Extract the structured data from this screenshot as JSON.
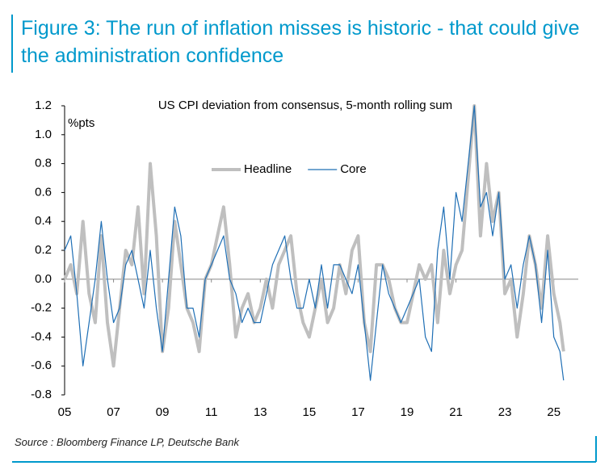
{
  "header": {
    "title": "Figure 3: The run of inflation misses is historic - that could give the administration confidence"
  },
  "chart_data": {
    "type": "line",
    "title": "US CPI deviation from consensus, 5-month rolling sum",
    "y_label": "%pts",
    "xlim": [
      2005,
      2026
    ],
    "xticks": [
      {
        "value": 2005,
        "label": "05"
      },
      {
        "value": 2007,
        "label": "07"
      },
      {
        "value": 2009,
        "label": "09"
      },
      {
        "value": 2011,
        "label": "11"
      },
      {
        "value": 2013,
        "label": "13"
      },
      {
        "value": 2015,
        "label": "15"
      },
      {
        "value": 2017,
        "label": "17"
      },
      {
        "value": 2019,
        "label": "19"
      },
      {
        "value": 2021,
        "label": "21"
      },
      {
        "value": 2023,
        "label": "23"
      },
      {
        "value": 2025,
        "label": "25"
      }
    ],
    "ylim": [
      -0.8,
      1.2
    ],
    "yticks": [
      1.2,
      {
        "value": 1.0,
        "label": "1.0"
      },
      0.8,
      0.6,
      0.4,
      0.2,
      {
        "value": 0.0,
        "label": "0.0"
      },
      -0.2,
      -0.4,
      -0.6,
      -0.8
    ],
    "legend": "top",
    "x": [
      2005,
      2005.25,
      2005.5,
      2005.75,
      2006,
      2006.25,
      2006.5,
      2006.75,
      2007,
      2007.25,
      2007.5,
      2007.75,
      2008,
      2008.25,
      2008.5,
      2008.75,
      2009,
      2009.25,
      2009.5,
      2009.75,
      2010,
      2010.25,
      2010.5,
      2010.75,
      2011,
      2011.25,
      2011.5,
      2011.75,
      2012,
      2012.25,
      2012.5,
      2012.75,
      2013,
      2013.25,
      2013.5,
      2013.75,
      2014,
      2014.25,
      2014.5,
      2014.75,
      2015,
      2015.25,
      2015.5,
      2015.75,
      2016,
      2016.25,
      2016.5,
      2016.75,
      2017,
      2017.25,
      2017.5,
      2017.75,
      2018,
      2018.25,
      2018.5,
      2018.75,
      2019,
      2019.25,
      2019.5,
      2019.75,
      2020,
      2020.25,
      2020.5,
      2020.75,
      2021,
      2021.25,
      2021.5,
      2021.75,
      2022,
      2022.25,
      2022.5,
      2022.75,
      2023,
      2023.25,
      2023.5,
      2023.75,
      2024,
      2024.25,
      2024.5,
      2024.75,
      2025,
      2025.25,
      2025.4
    ],
    "series": [
      {
        "name": "Headline",
        "color": "#bfbfbf",
        "values": [
          0,
          0.1,
          -0.1,
          0.4,
          -0.1,
          -0.3,
          0.3,
          -0.3,
          -0.6,
          -0.2,
          0.2,
          0.1,
          0.5,
          -0.1,
          0.8,
          0.3,
          -0.5,
          -0.2,
          0.4,
          0.1,
          -0.2,
          -0.3,
          -0.5,
          0,
          0.1,
          0.3,
          0.5,
          0.1,
          -0.4,
          -0.2,
          -0.1,
          -0.3,
          -0.2,
          0,
          -0.2,
          0.1,
          0.2,
          0.3,
          -0.1,
          -0.3,
          -0.4,
          -0.2,
          0,
          -0.3,
          -0.2,
          0.1,
          -0.1,
          0.2,
          0.3,
          -0.3,
          -0.5,
          0.1,
          0.1,
          0,
          -0.2,
          -0.3,
          -0.3,
          -0.1,
          0.1,
          0,
          0.1,
          -0.3,
          0.2,
          -0.1,
          0.1,
          0.2,
          0.7,
          1.2,
          0.3,
          0.8,
          0.4,
          0.6,
          -0.1,
          0,
          -0.4,
          -0.1,
          0.3,
          0.1,
          -0.2,
          0.3,
          -0.1,
          -0.3,
          -0.5
        ]
      },
      {
        "name": "Core",
        "color": "#1f6fb5",
        "values": [
          0.2,
          0.3,
          -0.1,
          -0.6,
          -0.3,
          0,
          0.4,
          0,
          -0.3,
          -0.2,
          0.1,
          0.2,
          0,
          -0.2,
          0.2,
          -0.2,
          -0.5,
          0,
          0.5,
          0.3,
          -0.2,
          -0.2,
          -0.4,
          0,
          0.1,
          0.2,
          0.3,
          0,
          -0.1,
          -0.3,
          -0.2,
          -0.3,
          -0.3,
          -0.1,
          0.1,
          0.2,
          0.3,
          0,
          -0.2,
          -0.2,
          0,
          -0.2,
          0.1,
          -0.2,
          0.1,
          0.1,
          0,
          -0.1,
          0.1,
          -0.3,
          -0.7,
          -0.3,
          0.1,
          -0.1,
          -0.2,
          -0.3,
          -0.2,
          -0.1,
          0,
          -0.4,
          -0.5,
          0.2,
          0.5,
          0,
          0.6,
          0.4,
          0.8,
          1.2,
          0.5,
          0.6,
          0.3,
          0.6,
          0,
          0.1,
          -0.2,
          0.1,
          0.3,
          0.1,
          -0.3,
          0.2,
          -0.4,
          -0.5,
          -0.7
        ]
      }
    ]
  },
  "footer": {
    "source": "Source : Bloomberg Finance LP, Deutsche Bank"
  }
}
